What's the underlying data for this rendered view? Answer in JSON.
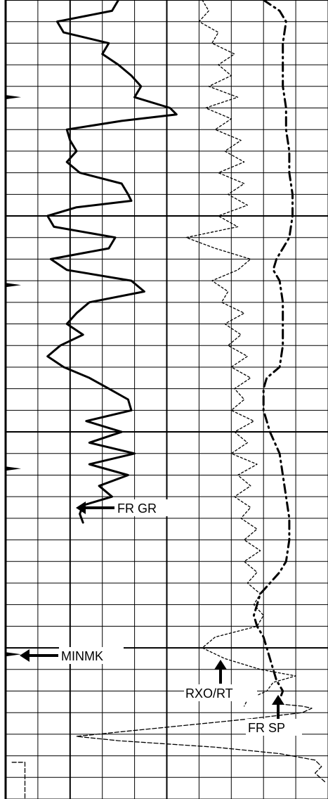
{
  "chart_data": {
    "type": "line",
    "title": "",
    "xlabel": "",
    "ylabel": "",
    "grid": true,
    "grid_major_vertical_columns": [
      2,
      5
    ],
    "grid_vertical_divisions": 10,
    "grid_horizontal_divisions": 37,
    "grid_major_horizontal_every": 10,
    "depth_range": [
      0,
      37
    ],
    "scale_range": [
      0,
      10
    ],
    "annotations": [
      {
        "label": "FR GR",
        "target_curve": "gamma-ray",
        "depth": 23.5
      },
      {
        "label": "MINMK",
        "target_curve": "minimum-marker",
        "depth": 30.3
      },
      {
        "label": "RXO/RT",
        "target_curve": "resistivity-ratio",
        "depth": 31.3
      },
      {
        "label": "FR SP",
        "target_curve": "spontaneous-potential",
        "depth": 32.5
      }
    ],
    "series": [
      {
        "key": "gamma-ray",
        "style": "solid",
        "color": "#000000",
        "points": [
          [
            0,
            3.5
          ],
          [
            0.5,
            3.3
          ],
          [
            1,
            1.6
          ],
          [
            1.5,
            1.8
          ],
          [
            2,
            3.2
          ],
          [
            2.5,
            3.0
          ],
          [
            3,
            3.5
          ],
          [
            3.5,
            3.9
          ],
          [
            4,
            4.2
          ],
          [
            4.5,
            4.0
          ],
          [
            5,
            5.1
          ],
          [
            5.3,
            5.3
          ],
          [
            5.6,
            3.6
          ],
          [
            6,
            1.9
          ],
          [
            6.5,
            2.0
          ],
          [
            7,
            2.2
          ],
          [
            7.5,
            1.9
          ],
          [
            8,
            2.3
          ],
          [
            8.5,
            3.6
          ],
          [
            9,
            3.8
          ],
          [
            9.3,
            3.9
          ],
          [
            9.6,
            2.2
          ],
          [
            10,
            1.3
          ],
          [
            10.5,
            1.5
          ],
          [
            11,
            3.4
          ],
          [
            11.5,
            3.2
          ],
          [
            12,
            1.4
          ],
          [
            12.5,
            1.9
          ],
          [
            13,
            3.9
          ],
          [
            13.5,
            4.3
          ],
          [
            14,
            2.6
          ],
          [
            14.5,
            2.2
          ],
          [
            15,
            1.9
          ],
          [
            15.5,
            2.4
          ],
          [
            16,
            1.7
          ],
          [
            16.5,
            1.3
          ],
          [
            17,
            1.8
          ],
          [
            17.5,
            2.6
          ],
          [
            18,
            3.2
          ],
          [
            18.5,
            3.8
          ],
          [
            19,
            3.9
          ],
          [
            19.5,
            2.5
          ],
          [
            20,
            3.6
          ],
          [
            20.5,
            2.6
          ],
          [
            21,
            4.0
          ],
          [
            21.5,
            2.6
          ],
          [
            22,
            3.8
          ],
          [
            22.5,
            2.9
          ],
          [
            23,
            3.3
          ],
          [
            23.4,
            2.4
          ],
          [
            23.8,
            2.3
          ],
          [
            24.2,
            2.4
          ]
        ]
      },
      {
        "key": "resistivity-ratio",
        "style": "dotted",
        "color": "#000000",
        "points": [
          [
            0,
            6.1
          ],
          [
            0.5,
            6.3
          ],
          [
            1,
            6.0
          ],
          [
            1.5,
            6.6
          ],
          [
            2,
            6.4
          ],
          [
            2.5,
            7.1
          ],
          [
            3,
            6.6
          ],
          [
            3.5,
            7.0
          ],
          [
            4,
            6.3
          ],
          [
            4.5,
            7.2
          ],
          [
            5,
            6.2
          ],
          [
            5.5,
            7.0
          ],
          [
            6,
            6.5
          ],
          [
            6.5,
            7.3
          ],
          [
            7,
            6.8
          ],
          [
            7.5,
            7.4
          ],
          [
            8,
            6.6
          ],
          [
            8.5,
            7.4
          ],
          [
            9,
            6.9
          ],
          [
            9.5,
            7.5
          ],
          [
            10,
            6.6
          ],
          [
            10.5,
            7.2
          ],
          [
            11,
            5.6
          ],
          [
            11.5,
            6.5
          ],
          [
            12,
            7.6
          ],
          [
            12.5,
            7.2
          ],
          [
            13,
            6.4
          ],
          [
            13.5,
            6.9
          ],
          [
            14,
            6.7
          ],
          [
            14.5,
            7.4
          ],
          [
            15,
            6.8
          ],
          [
            15.5,
            7.3
          ],
          [
            16,
            6.9
          ],
          [
            16.5,
            7.5
          ],
          [
            17,
            7.0
          ],
          [
            17.5,
            7.6
          ],
          [
            18,
            7.1
          ],
          [
            18.5,
            7.4
          ],
          [
            19,
            7.0
          ],
          [
            19.5,
            7.7
          ],
          [
            20,
            7.1
          ],
          [
            20.5,
            7.5
          ],
          [
            21,
            7.0
          ],
          [
            21.5,
            7.8
          ],
          [
            22,
            7.2
          ],
          [
            22.5,
            7.6
          ],
          [
            23,
            7.1
          ],
          [
            23.5,
            7.6
          ],
          [
            24,
            7.3
          ],
          [
            24.5,
            7.8
          ],
          [
            25,
            7.4
          ],
          [
            25.5,
            7.9
          ],
          [
            26,
            7.4
          ],
          [
            26.5,
            7.8
          ],
          [
            27,
            7.5
          ],
          [
            27.5,
            7.9
          ],
          [
            28,
            7.7
          ],
          [
            28.5,
            8.0
          ],
          [
            29,
            7.8
          ],
          [
            29.5,
            6.5
          ],
          [
            30,
            6.1
          ],
          [
            30.5,
            6.8
          ],
          [
            31,
            7.9
          ],
          [
            31.3,
            9.0
          ],
          [
            31.6,
            8.3
          ],
          [
            32,
            8.1
          ],
          [
            32.4,
            7.5
          ],
          [
            32.7,
            7.4
          ]
        ]
      },
      {
        "key": "deep-resistivity",
        "style": "dash-dot",
        "color": "#000000",
        "points": [
          [
            0,
            8.0
          ],
          [
            0.5,
            8.5
          ],
          [
            1,
            8.7
          ],
          [
            2,
            8.6
          ],
          [
            3,
            8.6
          ],
          [
            4,
            8.6
          ],
          [
            5,
            8.7
          ],
          [
            6,
            8.7
          ],
          [
            7,
            8.8
          ],
          [
            8,
            8.8
          ],
          [
            9,
            8.9
          ],
          [
            10,
            8.9
          ],
          [
            11,
            8.8
          ],
          [
            11.5,
            8.6
          ],
          [
            12,
            8.4
          ],
          [
            12.5,
            8.3
          ],
          [
            13,
            8.5
          ],
          [
            14,
            8.6
          ],
          [
            15,
            8.6
          ],
          [
            16,
            8.6
          ],
          [
            17,
            8.5
          ],
          [
            17.5,
            8.1
          ],
          [
            18,
            8.0
          ],
          [
            19,
            8.0
          ],
          [
            20,
            8.2
          ],
          [
            21,
            8.5
          ],
          [
            22,
            8.6
          ],
          [
            23,
            8.7
          ],
          [
            24,
            8.8
          ],
          [
            25,
            8.8
          ],
          [
            26,
            8.7
          ],
          [
            26.5,
            8.5
          ],
          [
            27,
            8.2
          ],
          [
            27.5,
            7.9
          ],
          [
            28,
            7.8
          ],
          [
            28.5,
            7.7
          ],
          [
            29,
            7.8
          ],
          [
            29.5,
            8.0
          ],
          [
            30,
            8.1
          ],
          [
            30.5,
            8.2
          ],
          [
            31,
            8.3
          ],
          [
            31.5,
            8.4
          ],
          [
            32,
            8.6
          ],
          [
            32.4,
            8.5
          ]
        ]
      },
      {
        "key": "spontaneous-potential",
        "style": "dashed",
        "color": "#000000",
        "points": [
          [
            32.6,
            8.5
          ],
          [
            32.7,
            9.2
          ],
          [
            32.8,
            9.5
          ],
          [
            33.0,
            9.2
          ],
          [
            33.3,
            7.5
          ],
          [
            33.6,
            5.5
          ],
          [
            33.9,
            3.5
          ],
          [
            34.1,
            2.2
          ],
          [
            34.3,
            3.5
          ],
          [
            34.6,
            6.5
          ],
          [
            34.9,
            8.5
          ],
          [
            35.2,
            9.6
          ],
          [
            35.5,
            9.8
          ],
          [
            35.8,
            9.6
          ],
          [
            36.2,
            9.9
          ]
        ]
      },
      {
        "key": "minimum-marker",
        "style": "dashed",
        "color": "#000000",
        "points": [
          [
            35.3,
            0.2
          ],
          [
            35.3,
            0.6
          ],
          [
            35.6,
            0.6
          ],
          [
            36.0,
            0.6
          ],
          [
            36.3,
            0.6
          ],
          [
            36.6,
            0.6
          ],
          [
            37.0,
            0.6
          ]
        ]
      }
    ]
  }
}
